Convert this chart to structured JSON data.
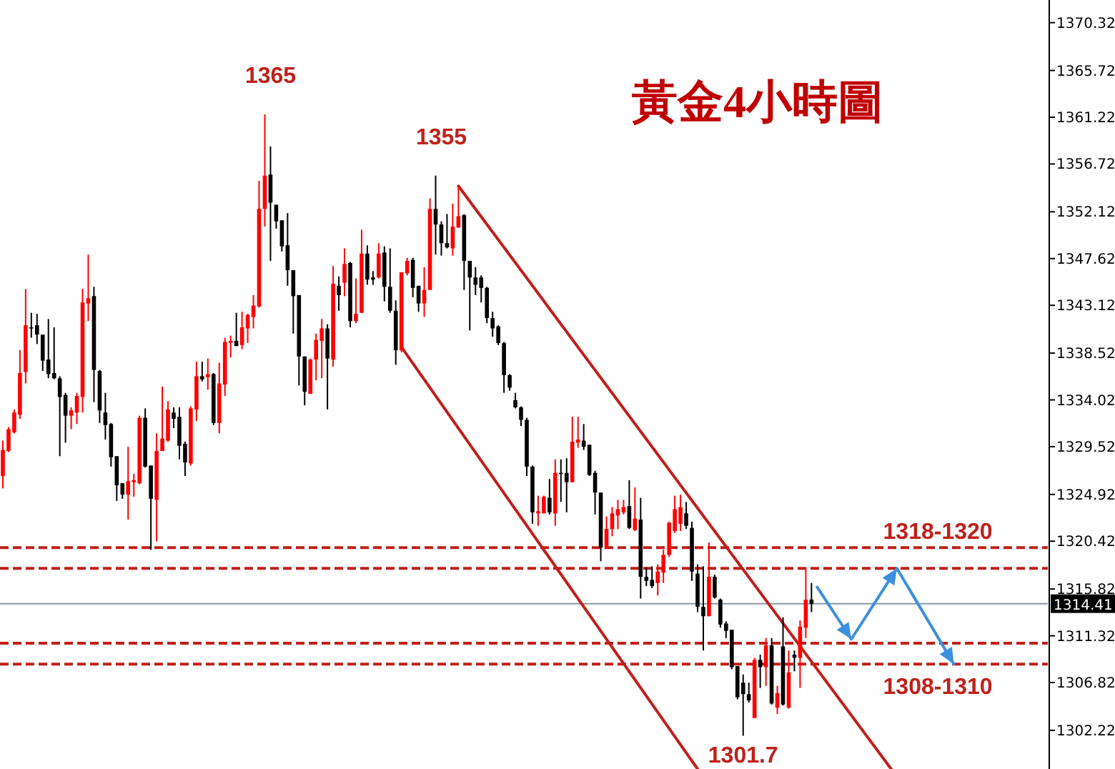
{
  "chart_data": {
    "type": "candlestick",
    "title": "黃金4小時圖",
    "categories": [
      null,
      null,
      null,
      null,
      null,
      null,
      null,
      null,
      null,
      null,
      null,
      null,
      null,
      null,
      null,
      null,
      null,
      null,
      null,
      null,
      null,
      null,
      null,
      null,
      null,
      null,
      null,
      null,
      null,
      null,
      null,
      null,
      null,
      null,
      null,
      null,
      null,
      null,
      null,
      null,
      null,
      null,
      null,
      null,
      null,
      null,
      null,
      null,
      null,
      null,
      null,
      null,
      null,
      null,
      null,
      null,
      null,
      null,
      null,
      null,
      null,
      null,
      null,
      null,
      null,
      null,
      null,
      null,
      null,
      null,
      null,
      null,
      null,
      null,
      null,
      null,
      null,
      null,
      null,
      null,
      null,
      null,
      null,
      null,
      null,
      null,
      null,
      null,
      null,
      null,
      null,
      null,
      null,
      null,
      null,
      null,
      null,
      null,
      null,
      null,
      null,
      null,
      null,
      null,
      null,
      null,
      null,
      null,
      null,
      null,
      null,
      null,
      null,
      null,
      null,
      null,
      null,
      null,
      null,
      null,
      null,
      null,
      null,
      null,
      null,
      null,
      null,
      null,
      null,
      null,
      null,
      null,
      null,
      null,
      null,
      null,
      null,
      null,
      null,
      null,
      null,
      null,
      null,
      null,
      null,
      null,
      null,
      null,
      null,
      null,
      null,
      null,
      null,
      null,
      null,
      null,
      null,
      null,
      null,
      null,
      null,
      null,
      null,
      null,
      null,
      null,
      null,
      null,
      null,
      null,
      null,
      null,
      null,
      null,
      null,
      null,
      null,
      null,
      null,
      null,
      null,
      null,
      null,
      null
    ],
    "ohlc": [
      [
        1326.7,
        1330.1,
        1325.5,
        1329.2
      ],
      [
        1329.1,
        1331.4,
        1329.0,
        1331.2
      ],
      [
        1330.9,
        1333.1,
        1330.8,
        1332.8
      ],
      [
        1332.6,
        1338.8,
        1332.2,
        1336.6
      ],
      [
        1336.7,
        1344.7,
        1335.6,
        1341.2
      ],
      [
        1341.0,
        1342.4,
        1340.0,
        1340.9
      ],
      [
        1341.2,
        1342.3,
        1339.4,
        1340.3
      ],
      [
        1340.3,
        1340.3,
        1336.8,
        1337.8
      ],
      [
        1337.9,
        1341.8,
        1336.1,
        1336.5
      ],
      [
        1336.6,
        1341.0,
        1336.0,
        1336.1
      ],
      [
        1336.1,
        1336.3,
        1328.6,
        1334.3
      ],
      [
        1334.5,
        1334.7,
        1329.9,
        1332.5
      ],
      [
        1332.5,
        1333.3,
        1331.2,
        1333.0
      ],
      [
        1332.8,
        1334.7,
        1331.7,
        1334.4
      ],
      [
        1334.3,
        1344.7,
        1332.8,
        1343.4
      ],
      [
        1343.3,
        1348.0,
        1341.6,
        1343.8
      ],
      [
        1344.0,
        1344.9,
        1333.8,
        1336.9
      ],
      [
        1336.8,
        1336.9,
        1331.8,
        1333.0
      ],
      [
        1332.8,
        1334.7,
        1330.2,
        1331.6
      ],
      [
        1331.7,
        1331.8,
        1327.6,
        1328.5
      ],
      [
        1328.6,
        1328.6,
        1324.3,
        1325.8
      ],
      [
        1326.0,
        1326.0,
        1324.5,
        1324.9
      ],
      [
        1324.9,
        1329.5,
        1322.5,
        1326.2
      ],
      [
        1326.1,
        1326.9,
        1324.7,
        1326.3
      ],
      [
        1326.0,
        1332.5,
        1325.9,
        1332.3
      ],
      [
        1332.3,
        1333.2,
        1327.5,
        1327.6
      ],
      [
        1327.7,
        1327.7,
        1319.6,
        1324.5
      ],
      [
        1324.4,
        1330.8,
        1320.4,
        1329.1
      ],
      [
        1329.1,
        1335.3,
        1329.1,
        1330.3
      ],
      [
        1330.1,
        1333.9,
        1330.0,
        1333.1
      ],
      [
        1332.8,
        1333.3,
        1331.3,
        1332.2
      ],
      [
        1332.4,
        1333.3,
        1328.3,
        1329.6
      ],
      [
        1329.8,
        1330.0,
        1326.7,
        1328.0
      ],
      [
        1327.9,
        1333.4,
        1327.7,
        1333.2
      ],
      [
        1333.1,
        1337.7,
        1332.0,
        1336.3
      ],
      [
        1336.3,
        1337.7,
        1335.8,
        1336.0
      ],
      [
        1336.2,
        1338.0,
        1335.0,
        1336.5
      ],
      [
        1336.5,
        1336.6,
        1331.6,
        1331.8
      ],
      [
        1331.8,
        1337.6,
        1330.8,
        1335.6
      ],
      [
        1335.5,
        1340.0,
        1334.4,
        1339.6
      ],
      [
        1339.5,
        1340.2,
        1338.1,
        1339.7
      ],
      [
        1339.7,
        1342.4,
        1339.2,
        1339.2
      ],
      [
        1339.3,
        1342.5,
        1338.9,
        1341.0
      ],
      [
        1340.9,
        1342.3,
        1339.5,
        1342.2
      ],
      [
        1342.0,
        1344.1,
        1340.9,
        1343.1
      ],
      [
        1343.0,
        1355.1,
        1342.9,
        1352.4
      ],
      [
        1352.4,
        1361.5,
        1350.7,
        1355.6
      ],
      [
        1355.7,
        1358.4,
        1347.4,
        1353.0
      ],
      [
        1352.8,
        1352.8,
        1350.5,
        1351.2
      ],
      [
        1351.3,
        1351.3,
        1348.3,
        1348.8
      ],
      [
        1348.9,
        1352.0,
        1345.0,
        1346.5
      ],
      [
        1346.5,
        1346.5,
        1340.4,
        1344.0
      ],
      [
        1344.1,
        1344.1,
        1335.4,
        1338.2
      ],
      [
        1338.2,
        1338.2,
        1333.5,
        1334.8
      ],
      [
        1334.6,
        1338.0,
        1334.6,
        1337.9
      ],
      [
        1337.9,
        1340.4,
        1335.9,
        1339.8
      ],
      [
        1339.7,
        1341.8,
        1336.1,
        1340.9
      ],
      [
        1340.9,
        1341.3,
        1333.1,
        1338.0
      ],
      [
        1337.9,
        1346.9,
        1337.2,
        1345.2
      ],
      [
        1345.0,
        1345.9,
        1342.6,
        1344.1
      ],
      [
        1345.3,
        1348.6,
        1344.0,
        1347.1
      ],
      [
        1347.2,
        1347.3,
        1341.0,
        1341.6
      ],
      [
        1341.6,
        1345.7,
        1341.4,
        1342.3
      ],
      [
        1342.4,
        1350.4,
        1342.4,
        1348.1
      ],
      [
        1348.1,
        1348.9,
        1345.1,
        1345.6
      ],
      [
        1345.8,
        1346.4,
        1345.1,
        1345.6
      ],
      [
        1345.8,
        1349.1,
        1345.7,
        1348.1
      ],
      [
        1348.2,
        1348.8,
        1343.5,
        1344.9
      ],
      [
        1344.9,
        1348.6,
        1342.4,
        1342.6
      ],
      [
        1342.6,
        1343.6,
        1337.4,
        1338.8
      ],
      [
        1338.8,
        1346.3,
        1338.6,
        1346.3
      ],
      [
        1346.2,
        1347.7,
        1346.0,
        1347.4
      ],
      [
        1347.5,
        1347.7,
        1343.9,
        1344.8
      ],
      [
        1345.0,
        1345.0,
        1342.5,
        1343.3
      ],
      [
        1343.3,
        1346.8,
        1342.0,
        1344.6
      ],
      [
        1344.6,
        1353.4,
        1344.6,
        1352.4
      ],
      [
        1352.4,
        1355.6,
        1348.0,
        1350.9
      ],
      [
        1350.9,
        1351.2,
        1347.9,
        1349.1
      ],
      [
        1349.1,
        1351.9,
        1348.6,
        1348.7
      ],
      [
        1348.6,
        1352.9,
        1347.9,
        1350.7
      ],
      [
        1350.6,
        1354.5,
        1350.6,
        1351.7
      ],
      [
        1351.8,
        1351.9,
        1344.6,
        1347.4
      ],
      [
        1347.4,
        1347.4,
        1340.7,
        1345.8
      ],
      [
        1345.8,
        1346.8,
        1344.1,
        1345.1
      ],
      [
        1345.8,
        1346.0,
        1343.4,
        1344.8
      ],
      [
        1344.8,
        1344.9,
        1341.4,
        1341.9
      ],
      [
        1341.9,
        1342.5,
        1340.1,
        1340.9
      ],
      [
        1341.1,
        1341.2,
        1339.3,
        1339.5
      ],
      [
        1339.5,
        1339.6,
        1334.7,
        1336.4
      ],
      [
        1336.4,
        1336.5,
        1334.9,
        1335.2
      ],
      [
        1334.0,
        1334.7,
        1333.2,
        1333.3
      ],
      [
        1333.3,
        1333.4,
        1331.5,
        1332.1
      ],
      [
        1332.1,
        1332.3,
        1326.7,
        1327.6
      ],
      [
        1327.6,
        1327.7,
        1322.1,
        1323.2
      ],
      [
        1323.1,
        1324.8,
        1321.9,
        1323.3
      ],
      [
        1323.1,
        1324.8,
        1323.1,
        1324.7
      ],
      [
        1324.6,
        1326.4,
        1323.0,
        1323.2
      ],
      [
        1323.1,
        1328.3,
        1321.9,
        1327.0
      ],
      [
        1327.0,
        1328.3,
        1324.2,
        1326.9
      ],
      [
        1327.0,
        1328.4,
        1323.2,
        1326.1
      ],
      [
        1326.1,
        1332.4,
        1326.1,
        1330.0
      ],
      [
        1329.9,
        1332.4,
        1329.4,
        1330.2
      ],
      [
        1330.1,
        1331.7,
        1329.2,
        1329.5
      ],
      [
        1329.7,
        1329.7,
        1326.7,
        1326.8
      ],
      [
        1327.0,
        1327.2,
        1323.0,
        1325.1
      ],
      [
        1325.1,
        1325.1,
        1318.5,
        1319.8
      ],
      [
        1319.8,
        1322.8,
        1319.8,
        1321.6
      ],
      [
        1321.6,
        1323.7,
        1320.9,
        1323.1
      ],
      [
        1322.9,
        1324.4,
        1321.6,
        1323.5
      ],
      [
        1323.2,
        1324.4,
        1323.0,
        1323.7
      ],
      [
        1323.8,
        1326.3,
        1321.6,
        1321.7
      ],
      [
        1321.5,
        1325.6,
        1321.4,
        1322.6
      ],
      [
        1322.5,
        1324.6,
        1314.9,
        1317.0
      ],
      [
        1317.0,
        1317.9,
        1316.1,
        1316.6
      ],
      [
        1316.7,
        1318.0,
        1315.9,
        1316.1
      ],
      [
        1316.4,
        1318.2,
        1315.2,
        1317.5
      ],
      [
        1317.4,
        1319.6,
        1316.4,
        1319.1
      ],
      [
        1319.1,
        1322.3,
        1318.9,
        1322.2
      ],
      [
        1321.4,
        1324.8,
        1321.2,
        1323.5
      ],
      [
        1322.1,
        1324.9,
        1321.4,
        1323.7
      ],
      [
        1323.1,
        1324.2,
        1321.6,
        1321.9
      ],
      [
        1321.7,
        1322.3,
        1316.6,
        1317.5
      ],
      [
        1317.3,
        1318.2,
        1313.6,
        1314.1
      ],
      [
        1314.1,
        1318.0,
        1309.9,
        1313.2
      ],
      [
        1313.2,
        1320.3,
        1313.2,
        1317.0
      ],
      [
        1317.0,
        1317.2,
        1314.9,
        1315.0
      ],
      [
        1314.8,
        1314.9,
        1312.1,
        1312.4
      ],
      [
        1312.5,
        1312.7,
        1311.1,
        1311.8
      ],
      [
        1311.9,
        1311.9,
        1308.1,
        1308.3
      ],
      [
        1308.4,
        1308.4,
        1305.2,
        1305.4
      ],
      [
        1306.8,
        1307.6,
        1301.7,
        1305.7
      ],
      [
        1305.7,
        1306.8,
        1304.9,
        1305.1
      ],
      [
        1303.4,
        1309.2,
        1303.4,
        1309.0
      ],
      [
        1309.0,
        1309.5,
        1306.3,
        1308.3
      ],
      [
        1308.3,
        1311.1,
        1306.5,
        1310.4
      ],
      [
        1310.4,
        1311.1,
        1304.7,
        1304.8
      ],
      [
        1304.4,
        1306.5,
        1303.8,
        1305.8
      ],
      [
        1310.3,
        1313.1,
        1304.6,
        1304.7
      ],
      [
        1304.4,
        1309.9,
        1304.3,
        1307.8
      ],
      [
        1309.5,
        1309.9,
        1307.9,
        1309.2
      ],
      [
        1309.2,
        1312.8,
        1306.3,
        1312.2
      ],
      [
        1312.1,
        1317.9,
        1311.1,
        1314.8
      ],
      [
        1314.8,
        1316.4,
        1313.6,
        1314.4
      ],
      null,
      null,
      null,
      null,
      null,
      null,
      null,
      null,
      null,
      null,
      null,
      null,
      null,
      null,
      null,
      null,
      null,
      null,
      null,
      null,
      null,
      null,
      null,
      null,
      null,
      null,
      null,
      null,
      null,
      null,
      null,
      null,
      null,
      null,
      null,
      null,
      null,
      null,
      null,
      null,
      null
    ],
    "series": [
      {
        "type": "line",
        "color": "#c0201a",
        "values": [
          null,
          null,
          null,
          null,
          null,
          null,
          null,
          null,
          null,
          null,
          null,
          null,
          null,
          null,
          null,
          null,
          null,
          null,
          null,
          null,
          null,
          null,
          null,
          null,
          null,
          null,
          null,
          null,
          null,
          null,
          null,
          null,
          null,
          null,
          null,
          null,
          null,
          null,
          null,
          null,
          null,
          null,
          null,
          null,
          null,
          null,
          null,
          null,
          null,
          null,
          null,
          null,
          null,
          null,
          null,
          null,
          null,
          null,
          null,
          null,
          null,
          null,
          null,
          null,
          null,
          null,
          null,
          null,
          null,
          null,
          null,
          null,
          null,
          null,
          null,
          null,
          null,
          null,
          null,
          null,
          1354.6,
          null,
          null,
          null,
          null,
          null,
          null,
          null,
          null,
          null,
          null,
          null,
          null,
          null,
          null,
          null,
          null,
          null,
          null,
          null,
          null,
          null,
          null,
          null,
          null,
          null,
          null,
          null,
          null,
          null,
          null,
          null,
          null,
          null,
          null,
          null,
          null,
          null,
          null,
          null,
          null,
          null,
          null,
          null,
          null,
          null,
          null,
          null,
          null,
          null,
          null,
          null,
          null,
          null,
          null,
          null,
          null,
          null,
          null,
          null,
          null,
          null,
          null,
          null,
          null,
          null,
          null,
          null,
          null,
          null,
          null,
          null,
          null,
          null,
          null,
          null,
          1298.5,
          null,
          null,
          null,
          null,
          null,
          null,
          null,
          null,
          null,
          null,
          null,
          null,
          null,
          null,
          null,
          null,
          null,
          null,
          null,
          null,
          null,
          null,
          null,
          null,
          null,
          null,
          null
        ]
      },
      {
        "type": "line",
        "color": "#c0201a",
        "values": [
          null,
          null,
          null,
          null,
          null,
          null,
          null,
          null,
          null,
          null,
          null,
          null,
          null,
          null,
          null,
          null,
          null,
          null,
          null,
          null,
          null,
          null,
          null,
          null,
          null,
          null,
          null,
          null,
          null,
          null,
          null,
          null,
          null,
          null,
          null,
          null,
          null,
          null,
          null,
          null,
          null,
          null,
          null,
          null,
          null,
          null,
          null,
          null,
          null,
          null,
          null,
          null,
          null,
          null,
          null,
          null,
          null,
          null,
          null,
          null,
          null,
          null,
          null,
          null,
          null,
          null,
          null,
          null,
          null,
          null,
          1339.1,
          null,
          null,
          null,
          null,
          null,
          null,
          null,
          null,
          null,
          null,
          null,
          null,
          null,
          null,
          null,
          null,
          null,
          null,
          null,
          null,
          null,
          null,
          null,
          null,
          null,
          null,
          null,
          null,
          null,
          null,
          null,
          null,
          null,
          null,
          null,
          null,
          null,
          null,
          null,
          null,
          null,
          null,
          null,
          null,
          null,
          null,
          null,
          null,
          null,
          null,
          null,
          1298.5,
          null,
          null,
          null,
          null,
          null,
          null,
          null,
          null,
          null,
          null,
          null,
          null,
          null,
          null,
          null,
          null,
          null,
          null,
          null,
          null,
          null,
          null,
          null,
          null,
          null,
          null,
          null,
          null,
          null,
          null,
          null,
          null,
          null,
          null,
          null,
          null,
          null,
          null,
          null,
          null,
          null,
          null,
          null,
          null,
          null,
          null,
          null,
          null,
          null,
          null,
          null,
          null,
          null,
          null,
          null,
          null,
          null,
          null,
          null,
          null,
          null
        ]
      },
      {
        "type": "line",
        "color": "#3d8fe0",
        "values": [
          null,
          null,
          null,
          null,
          null,
          null,
          null,
          null,
          null,
          null,
          null,
          null,
          null,
          null,
          null,
          null,
          null,
          null,
          null,
          null,
          null,
          null,
          null,
          null,
          null,
          null,
          null,
          null,
          null,
          null,
          null,
          null,
          null,
          null,
          null,
          null,
          null,
          null,
          null,
          null,
          null,
          null,
          null,
          null,
          null,
          null,
          null,
          null,
          null,
          null,
          null,
          null,
          null,
          null,
          null,
          null,
          null,
          null,
          null,
          null,
          null,
          null,
          null,
          null,
          null,
          null,
          null,
          null,
          null,
          null,
          null,
          null,
          null,
          null,
          null,
          null,
          null,
          null,
          null,
          null,
          null,
          null,
          null,
          null,
          null,
          null,
          null,
          null,
          null,
          null,
          null,
          null,
          null,
          null,
          null,
          null,
          null,
          null,
          null,
          null,
          null,
          null,
          null,
          null,
          null,
          null,
          null,
          null,
          null,
          null,
          null,
          null,
          null,
          null,
          null,
          null,
          null,
          null,
          null,
          null,
          null,
          null,
          null,
          null,
          null,
          null,
          null,
          null,
          null,
          null,
          null,
          null,
          null,
          null,
          null,
          null,
          null,
          null,
          null,
          null,
          null,
          null,
          null,
          1316.0,
          null,
          null,
          null,
          null,
          null,
          1311.0,
          null,
          null,
          null,
          null,
          null,
          null,
          null,
          1317.8,
          null,
          null,
          null,
          null,
          null,
          null,
          null,
          null,
          null,
          1308.6,
          null,
          null,
          null,
          null,
          null,
          null,
          null,
          null,
          null,
          null,
          null,
          null,
          null,
          null,
          null,
          null
        ]
      }
    ],
    "ylim": [
      1298.5,
      1372.5
    ],
    "yticks": [
      1302.22,
      1306.82,
      1311.32,
      1315.82,
      1320.42,
      1324.92,
      1329.52,
      1334.02,
      1338.52,
      1343.12,
      1347.62,
      1352.12,
      1356.72,
      1361.22,
      1365.72,
      1370.32
    ],
    "tick_labels": "y",
    "ref_lines": [
      {
        "axis": "y",
        "value": 1319.8,
        "color": "#c0201a",
        "line_style": "dashed"
      },
      {
        "axis": "y",
        "value": 1317.8,
        "color": "#c0201a",
        "line_style": "dashed"
      },
      {
        "axis": "y",
        "value": 1310.6,
        "color": "#c0201a",
        "line_style": "dashed"
      },
      {
        "axis": "y",
        "value": 1308.6,
        "color": "#c0201a",
        "line_style": "dashed"
      },
      {
        "axis": "y",
        "value": 1314.41,
        "label": "1314.41",
        "color": "#8a96a0",
        "line_style": "solid"
      }
    ],
    "annotations": [
      "1318-1320",
      "1308-1310",
      {
        "text": "1365",
        "y": 1361.5
      },
      {
        "text": "1355",
        "y": 1355.6
      },
      {
        "text": "1301.7",
        "y": 1301.7
      }
    ],
    "grid": false
  }
}
